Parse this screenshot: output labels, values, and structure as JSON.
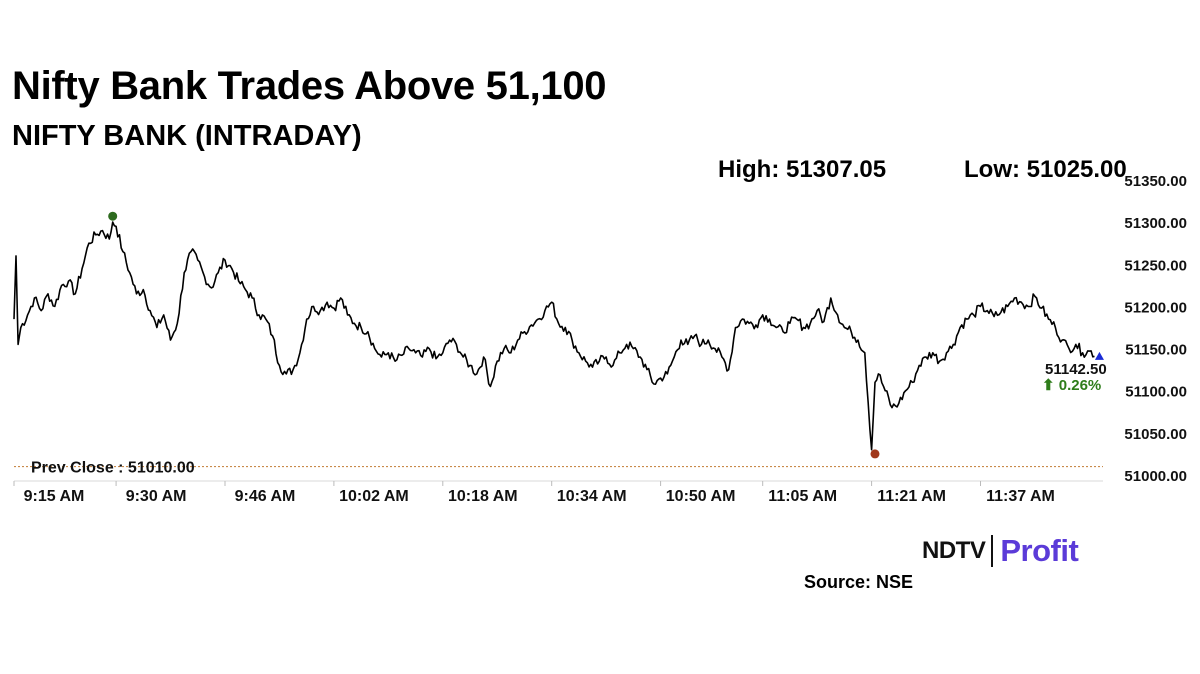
{
  "header": {
    "headline": "Nifty Bank Trades Above 51,100",
    "subtitle": "NIFTY BANK (INTRADAY)"
  },
  "stats": {
    "high": "High: 51307.05",
    "low": "Low: 51025.00"
  },
  "chart_data": {
    "type": "line",
    "title": "NIFTY BANK (INTRADAY)",
    "xlabel": "",
    "ylabel": "",
    "ylim": [
      51000,
      51350
    ],
    "y_ticks": [
      "51350.00",
      "51300.00",
      "51250.00",
      "51200.00",
      "51150.00",
      "51100.00",
      "51050.00",
      "51000.00"
    ],
    "y_tick_values": [
      51350,
      51300,
      51250,
      51200,
      51150,
      51100,
      51050,
      51000
    ],
    "x_ticks": [
      "9:15 AM",
      "9:30 AM",
      "9:46 AM",
      "10:02 AM",
      "10:18 AM",
      "10:34 AM",
      "10:50 AM",
      "11:05 AM",
      "11:21 AM",
      "11:37 AM"
    ],
    "x_tick_minutes": [
      0,
      15,
      31,
      47,
      63,
      79,
      95,
      110,
      126,
      142
    ],
    "xlim_minutes": [
      0,
      160
    ],
    "series": [
      {
        "minutes": [
          0,
          0.3,
          0.6,
          1,
          2,
          3,
          4,
          5,
          6,
          7,
          8,
          9,
          10,
          11,
          12,
          13,
          14,
          14.5,
          15,
          16,
          17,
          18,
          19,
          20,
          21,
          22,
          23,
          24,
          25,
          26,
          27,
          28,
          29,
          30,
          31,
          32,
          33,
          34,
          35,
          36,
          37,
          38,
          39,
          40,
          41,
          42,
          43,
          44,
          45,
          46,
          47,
          48,
          49,
          50,
          51,
          52,
          53,
          54,
          55,
          56,
          57,
          58,
          59,
          60,
          61,
          62,
          63,
          64,
          65,
          66,
          67,
          68,
          69,
          70,
          71,
          72,
          73,
          74,
          75,
          76,
          77,
          78,
          79,
          80,
          81,
          82,
          83,
          84,
          85,
          86,
          87,
          88,
          89,
          90,
          91,
          92,
          93,
          94,
          95,
          96,
          97,
          98,
          99,
          100,
          101,
          102,
          103,
          104,
          105,
          106,
          107,
          108,
          109,
          110,
          111,
          112,
          113,
          114,
          115,
          116,
          117,
          118,
          119,
          120,
          121,
          122,
          123,
          124,
          125,
          126,
          126.5,
          127,
          128,
          129,
          130,
          131,
          132,
          133,
          134,
          135,
          136,
          137,
          138,
          139,
          140,
          141,
          142,
          143,
          144,
          145,
          146,
          147,
          148,
          149,
          150,
          151,
          152,
          153,
          154,
          155,
          156,
          157,
          158,
          159,
          159.7
        ],
        "values": [
          51185,
          51260,
          51155,
          51175,
          51190,
          51210,
          51195,
          51215,
          51200,
          51225,
          51230,
          51215,
          51245,
          51275,
          51285,
          51290,
          51280,
          51300,
          51295,
          51265,
          51240,
          51215,
          51220,
          51195,
          51175,
          51190,
          51160,
          51180,
          51240,
          51265,
          51255,
          51235,
          51222,
          51240,
          51255,
          51245,
          51230,
          51220,
          51210,
          51190,
          51185,
          51165,
          51130,
          51120,
          51125,
          51145,
          51185,
          51200,
          51195,
          51205,
          51198,
          51210,
          51190,
          51180,
          51175,
          51170,
          51150,
          51140,
          51145,
          51135,
          51142,
          51150,
          51145,
          51140,
          51150,
          51138,
          51145,
          51160,
          51155,
          51140,
          51130,
          51120,
          51140,
          51105,
          51135,
          51150,
          51145,
          51160,
          51170,
          51178,
          51185,
          51195,
          51205,
          51180,
          51175,
          51160,
          51145,
          51135,
          51128,
          51135,
          51140,
          51130,
          51145,
          51155,
          51150,
          51140,
          51125,
          51108,
          51115,
          51120,
          51140,
          51160,
          51155,
          51165,
          51155,
          51160,
          51150,
          51140,
          51125,
          51175,
          51185,
          51180,
          51178,
          51190,
          51185,
          51175,
          51170,
          51180,
          51185,
          51175,
          51180,
          51195,
          51182,
          51210,
          51190,
          51175,
          51170,
          51160,
          51145,
          51030,
          51110,
          51120,
          51100,
          51080,
          51085,
          51100,
          51110,
          51130,
          51140,
          51145,
          51135,
          51145,
          51155,
          51175,
          51185,
          51190,
          51200,
          51195,
          51188,
          51193,
          51200,
          51210,
          51205,
          51200,
          51212,
          51198,
          51185,
          51175,
          51160,
          51150,
          51155,
          51145,
          51147,
          51142.5
        ]
      }
    ],
    "prev_close_label": "Prev Close : 51010.00",
    "prev_close_value": 51010,
    "high_value": 51307.05,
    "high_minute": 14.5,
    "low_value": 51025.0,
    "low_minute": 126.5,
    "last_price": "51142.50",
    "change": "⬆ 0.26%",
    "colors": {
      "line": "#000000",
      "prev_close": "#c98a4a",
      "high_marker": "#2e6b1f",
      "low_marker": "#a0381b",
      "last_marker": "#1a2bd6",
      "change_text": "#2e7d1a"
    }
  },
  "footer": {
    "logo_ndtv": "NDTV",
    "logo_profit": "Profit",
    "source": "Source: NSE"
  }
}
